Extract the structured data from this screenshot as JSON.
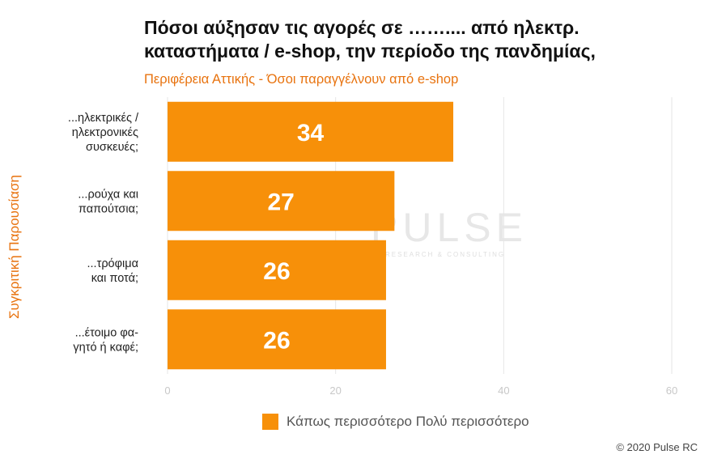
{
  "header": {
    "title_line1": "Πόσοι αύξησαν τις αγορές σε ……....  από ηλεκτρ.",
    "title_line2": "καταστήματα / e-shop, την περίοδο της πανδημίας,",
    "subtitle": "Περιφέρεια Αττικής - Όσοι παραγγέλνουν από e-shop"
  },
  "side_label": "Συγκριτική  Παρουσίαση",
  "watermark": {
    "text": "PULSE",
    "sub": "RESEARCH & CONSULTING"
  },
  "legend": {
    "label": "Κάπως περισσότερο Πολύ περισσότερο"
  },
  "copyright": "© 2020 Pulse RC",
  "colors": {
    "bar": "#f79009",
    "label_text": "#ffffff",
    "accent": "#e8730f",
    "grid": "#e6e6e6"
  },
  "chart_data": {
    "type": "bar",
    "orientation": "horizontal",
    "categories": [
      [
        "...ηλεκτρικές /",
        "ηλεκτρονικές",
        "συσκευές;"
      ],
      [
        "...ρούχα και",
        "παπούτσια;"
      ],
      [
        "...τρόφιμα",
        "και ποτά;"
      ],
      [
        "...έτοιμο φα-",
        "γητό ή καφέ;"
      ]
    ],
    "series": [
      {
        "values": [
          34,
          27,
          26,
          26
        ]
      }
    ],
    "xlim": [
      0,
      60
    ],
    "xticks": [
      "0",
      "20",
      "40",
      "60"
    ],
    "grid": true,
    "legend_position": "bottom"
  }
}
